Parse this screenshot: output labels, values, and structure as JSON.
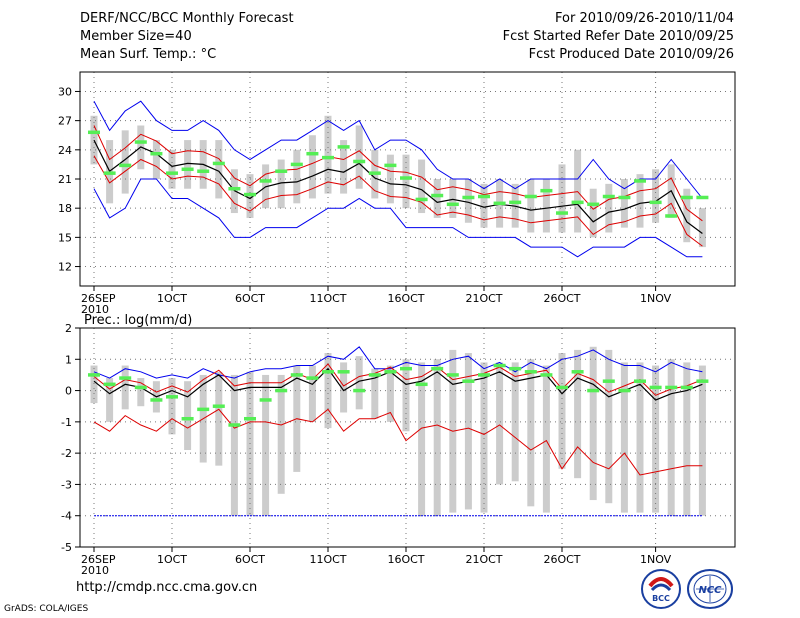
{
  "header": {
    "title": "DERF/NCC/BCC Monthly Forecast",
    "member_size": "Member Size=40",
    "variable": "Mean Surf. Temp.: °C",
    "period": "For 2010/09/26-2010/11/04",
    "started": "Fcst Started Refer Date 2010/09/25",
    "produced": "Fcst Produced Date 2010/09/26"
  },
  "footer": {
    "url": "http://cmdp.ncc.cma.gov.cn",
    "grads": "GrADS: COLA/IGES",
    "logo_left": "BCC",
    "logo_right": "NCC"
  },
  "colors": {
    "envelope": "#0000ee",
    "mean": "#000000",
    "spread": "#dd0000",
    "bars": "#cccccc",
    "markers": "#55ee55",
    "grid": "#777777"
  },
  "chart_data": [
    {
      "type": "bar",
      "title": "Mean Surf. Temp.: °C",
      "x_tick_labels": [
        "26SEP",
        "1OCT",
        "6OCT",
        "11OCT",
        "16OCT",
        "21OCT",
        "26OCT",
        "1NOV"
      ],
      "x_tick_year": "2010",
      "x_tick_indices": [
        0,
        5,
        10,
        15,
        20,
        25,
        30,
        36
      ],
      "y_ticks": [
        12,
        15,
        18,
        21,
        24,
        27,
        30
      ],
      "ylim": [
        10,
        32
      ],
      "days": 40,
      "series": [
        {
          "name": "max",
          "values": [
            29,
            26,
            28,
            29,
            27,
            26,
            26,
            27,
            26,
            24,
            23,
            24,
            25,
            25,
            26,
            27,
            26,
            27,
            24,
            25,
            25,
            24,
            22,
            21,
            21,
            20,
            21,
            20,
            21,
            21,
            21,
            21,
            23,
            21,
            20,
            21,
            21,
            23,
            21,
            19
          ]
        },
        {
          "name": "min",
          "values": [
            20,
            17,
            18,
            21,
            21,
            19,
            19,
            18,
            17,
            15,
            15,
            16,
            16,
            16,
            17,
            18,
            18,
            19,
            18,
            18,
            16,
            16,
            16,
            16,
            15,
            15,
            15,
            15,
            14,
            14,
            14,
            13,
            14,
            14,
            14,
            15,
            15,
            14,
            13,
            13
          ]
        },
        {
          "name": "mean",
          "values": [
            25.0,
            21.8,
            23.0,
            24.3,
            23.6,
            22.3,
            22.6,
            22.5,
            21.8,
            19.8,
            19.0,
            20.2,
            20.6,
            20.7,
            21.3,
            22.0,
            21.7,
            22.6,
            21.1,
            20.5,
            20.4,
            19.9,
            18.6,
            18.9,
            18.6,
            18.1,
            18.4,
            18.2,
            17.8,
            18.0,
            18.2,
            18.4,
            16.6,
            17.6,
            17.9,
            18.5,
            18.7,
            19.8,
            16.6,
            15.4
          ]
        },
        {
          "name": "upper",
          "values": [
            26.5,
            23.0,
            24.2,
            25.6,
            24.9,
            23.6,
            23.9,
            23.8,
            23.1,
            21.1,
            20.3,
            21.5,
            21.9,
            22.0,
            22.6,
            23.3,
            23.0,
            23.9,
            22.4,
            21.8,
            21.7,
            21.2,
            19.9,
            20.2,
            19.9,
            19.4,
            19.7,
            19.5,
            19.1,
            19.3,
            19.5,
            19.7,
            17.9,
            18.9,
            19.2,
            19.8,
            20.0,
            21.1,
            17.9,
            16.7
          ]
        },
        {
          "name": "lower",
          "values": [
            23.4,
            20.6,
            21.8,
            23.0,
            22.3,
            21.0,
            21.3,
            21.2,
            20.5,
            18.5,
            17.7,
            18.9,
            19.3,
            19.4,
            20.0,
            20.7,
            20.4,
            21.3,
            19.8,
            19.2,
            19.1,
            18.6,
            17.3,
            17.6,
            17.3,
            16.8,
            17.1,
            16.9,
            16.5,
            16.7,
            16.9,
            17.1,
            15.3,
            16.3,
            16.6,
            17.2,
            17.4,
            18.5,
            15.3,
            14.1
          ]
        },
        {
          "name": "bar_top",
          "values": [
            27.5,
            25.0,
            26.0,
            26.5,
            25.0,
            24.0,
            25.0,
            25.0,
            25.0,
            22.0,
            21.5,
            22.5,
            23.0,
            24.0,
            25.5,
            27.5,
            25.0,
            26.5,
            24.0,
            23.5,
            23.5,
            23.0,
            21.0,
            21.0,
            21.0,
            20.5,
            21.0,
            20.5,
            21.0,
            21.0,
            22.5,
            24.0,
            20.0,
            20.5,
            21.0,
            21.5,
            22.0,
            22.5,
            20.0,
            18.0
          ]
        },
        {
          "name": "bar_bottom",
          "values": [
            22.5,
            18.5,
            19.5,
            22.0,
            21.0,
            20.0,
            20.0,
            20.0,
            19.0,
            17.5,
            17.0,
            18.0,
            18.0,
            18.5,
            19.0,
            19.5,
            19.5,
            20.0,
            19.0,
            18.5,
            18.0,
            17.5,
            17.0,
            17.0,
            16.5,
            16.0,
            16.0,
            16.0,
            15.5,
            15.5,
            15.5,
            15.5,
            15.0,
            15.5,
            16.0,
            16.0,
            16.5,
            17.0,
            14.5,
            14.0
          ]
        },
        {
          "name": "marker",
          "values": [
            25.8,
            21.6,
            22.4,
            24.8,
            23.6,
            21.6,
            22.0,
            21.8,
            22.6,
            20.0,
            19.4,
            20.8,
            21.8,
            22.5,
            23.6,
            23.2,
            24.3,
            22.8,
            21.6,
            22.4,
            21.1,
            18.9,
            19.3,
            18.4,
            19.1,
            19.2,
            18.5,
            18.6,
            19.2,
            19.8,
            17.5,
            18.6,
            18.4,
            19.2,
            19.1,
            20.8,
            18.6,
            17.2,
            19.1,
            19.1
          ]
        }
      ]
    },
    {
      "type": "bar",
      "title": "Prec.: log(mm/d)",
      "x_tick_labels": [
        "26SEP",
        "1OCT",
        "6OCT",
        "11OCT",
        "16OCT",
        "21OCT",
        "26OCT",
        "1NOV"
      ],
      "x_tick_year": "2010",
      "x_tick_indices": [
        0,
        5,
        10,
        15,
        20,
        25,
        30,
        36
      ],
      "y_ticks": [
        -5,
        -4,
        -3,
        -2,
        -1,
        0,
        1,
        2
      ],
      "ylim": [
        -5,
        2
      ],
      "days": 40,
      "series": [
        {
          "name": "max",
          "values": [
            0.6,
            0.4,
            0.7,
            0.6,
            0.4,
            0.5,
            0.4,
            0.7,
            0.5,
            0.4,
            0.6,
            0.7,
            0.7,
            0.8,
            0.8,
            1.1,
            1.0,
            1.4,
            0.7,
            0.7,
            0.9,
            0.8,
            0.8,
            1.0,
            1.1,
            0.7,
            0.9,
            0.6,
            0.9,
            0.7,
            1.0,
            1.1,
            1.3,
            1.0,
            0.8,
            0.8,
            0.6,
            0.9,
            0.7,
            0.6
          ]
        },
        {
          "name": "min",
          "values": [
            -4,
            -4,
            -4,
            -4,
            -4,
            -4,
            -4,
            -4,
            -4,
            -4,
            -4,
            -4,
            -4,
            -4,
            -4,
            -4,
            -4,
            -4,
            -4,
            -4,
            -4,
            -4,
            -4,
            -4,
            -4,
            -4,
            -4,
            -4,
            -4,
            -4,
            -4,
            -4,
            -4,
            -4,
            -4,
            -4,
            -4,
            -4,
            -4,
            -4
          ]
        },
        {
          "name": "mean",
          "values": [
            0.3,
            -0.1,
            0.2,
            0.1,
            -0.2,
            0.0,
            -0.2,
            0.2,
            0.5,
            0.0,
            0.1,
            0.1,
            0.1,
            0.4,
            0.2,
            0.7,
            0.0,
            0.3,
            0.4,
            0.6,
            0.2,
            0.3,
            0.6,
            0.2,
            0.3,
            0.4,
            0.6,
            0.3,
            0.4,
            0.5,
            -0.1,
            0.4,
            0.2,
            -0.2,
            0.0,
            0.2,
            -0.3,
            -0.1,
            0.0,
            0.2
          ]
        },
        {
          "name": "upper",
          "values": [
            0.45,
            0.05,
            0.35,
            0.25,
            -0.05,
            0.15,
            -0.05,
            0.35,
            0.65,
            0.15,
            0.25,
            0.25,
            0.25,
            0.55,
            0.35,
            0.85,
            0.15,
            0.45,
            0.55,
            0.75,
            0.35,
            0.45,
            0.75,
            0.35,
            0.45,
            0.55,
            0.75,
            0.45,
            0.55,
            0.65,
            0.05,
            0.55,
            0.35,
            -0.05,
            0.15,
            0.35,
            -0.15,
            0.05,
            0.15,
            0.35
          ]
        },
        {
          "name": "lower",
          "values": [
            -1.0,
            -1.3,
            -0.8,
            -1.1,
            -1.3,
            -0.9,
            -1.2,
            -0.9,
            -0.6,
            -1.2,
            -1.0,
            -1.0,
            -1.1,
            -0.9,
            -1.0,
            -0.6,
            -1.3,
            -0.9,
            -0.9,
            -0.7,
            -1.6,
            -1.2,
            -1.1,
            -1.3,
            -1.2,
            -1.4,
            -1.1,
            -1.5,
            -1.9,
            -1.6,
            -2.5,
            -1.8,
            -2.3,
            -2.5,
            -2.0,
            -2.7,
            -2.6,
            -2.5,
            -2.4,
            -2.4
          ]
        },
        {
          "name": "bar_top",
          "values": [
            0.8,
            0.4,
            0.8,
            0.4,
            0.3,
            0.4,
            0.3,
            0.5,
            0.6,
            0.5,
            0.6,
            0.5,
            0.5,
            0.8,
            0.8,
            1.2,
            0.9,
            1.1,
            0.7,
            0.8,
            1.0,
            0.9,
            1.0,
            1.3,
            1.2,
            0.9,
            0.9,
            0.9,
            1.0,
            0.8,
            1.2,
            1.3,
            1.4,
            1.3,
            0.9,
            0.9,
            0.8,
            1.0,
            0.9,
            0.8
          ]
        },
        {
          "name": "bar_bottom",
          "values": [
            -0.4,
            -1.0,
            -0.6,
            -0.5,
            -0.7,
            -1.4,
            -1.9,
            -2.3,
            -2.4,
            -4.0,
            -4.0,
            -4.0,
            -3.3,
            -2.6,
            -1.0,
            -1.2,
            -0.7,
            -0.6,
            -0.9,
            -1.0,
            -1.3,
            -4.0,
            -4.0,
            -3.9,
            -3.8,
            -3.9,
            -3.0,
            -2.9,
            -3.7,
            -3.9,
            -2.5,
            -2.8,
            -3.5,
            -3.6,
            -3.9,
            -3.9,
            -3.9,
            -4.0,
            -4.0,
            -4.0
          ]
        },
        {
          "name": "marker",
          "values": [
            0.5,
            0.2,
            0.4,
            0.1,
            -0.3,
            -0.2,
            -0.9,
            -0.6,
            -0.5,
            -1.1,
            -0.9,
            -0.3,
            0.0,
            0.5,
            0.4,
            0.6,
            0.6,
            0.0,
            0.5,
            0.6,
            0.7,
            0.2,
            0.7,
            0.5,
            0.3,
            0.5,
            0.8,
            0.7,
            0.6,
            0.5,
            0.1,
            0.6,
            0.0,
            0.3,
            0.0,
            0.3,
            0.1,
            0.1,
            0.1,
            0.3
          ]
        }
      ]
    }
  ]
}
